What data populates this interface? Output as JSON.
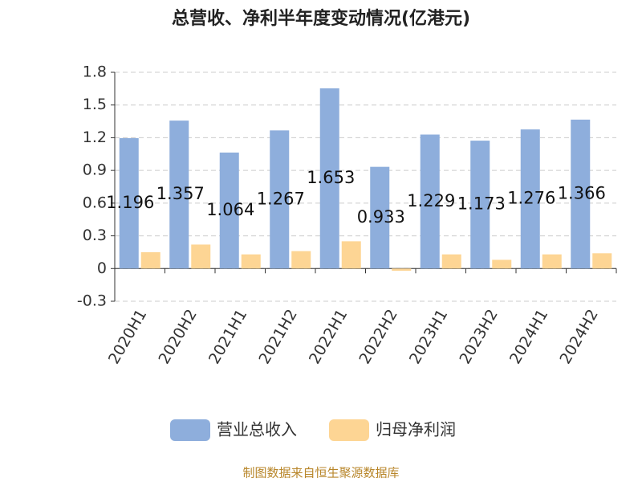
{
  "chart_data": {
    "type": "bar",
    "title": "总营收、净利半年度变动情况(亿港元)",
    "categories": [
      "2020H1",
      "2020H2",
      "2021H1",
      "2021H2",
      "2022H1",
      "2022H2",
      "2023H1",
      "2023H2",
      "2024H1",
      "2024H2"
    ],
    "series": [
      {
        "name": "营业总收入",
        "color": "#8eaedc",
        "values": [
          1.196,
          1.357,
          1.064,
          1.267,
          1.653,
          0.933,
          1.229,
          1.173,
          1.276,
          1.366
        ]
      },
      {
        "name": "归母净利润",
        "color": "#fdd594",
        "values": [
          0.15,
          0.22,
          0.13,
          0.16,
          0.25,
          -0.02,
          0.13,
          0.08,
          0.13,
          0.14
        ]
      }
    ],
    "ylim": [
      -0.3,
      1.8
    ],
    "yticks": [
      -0.3,
      0,
      0.3,
      0.6,
      0.9,
      1.2,
      1.5,
      1.8
    ],
    "grid": true,
    "legend": "bottom",
    "source": "制图数据来自恒生聚源数据库"
  }
}
